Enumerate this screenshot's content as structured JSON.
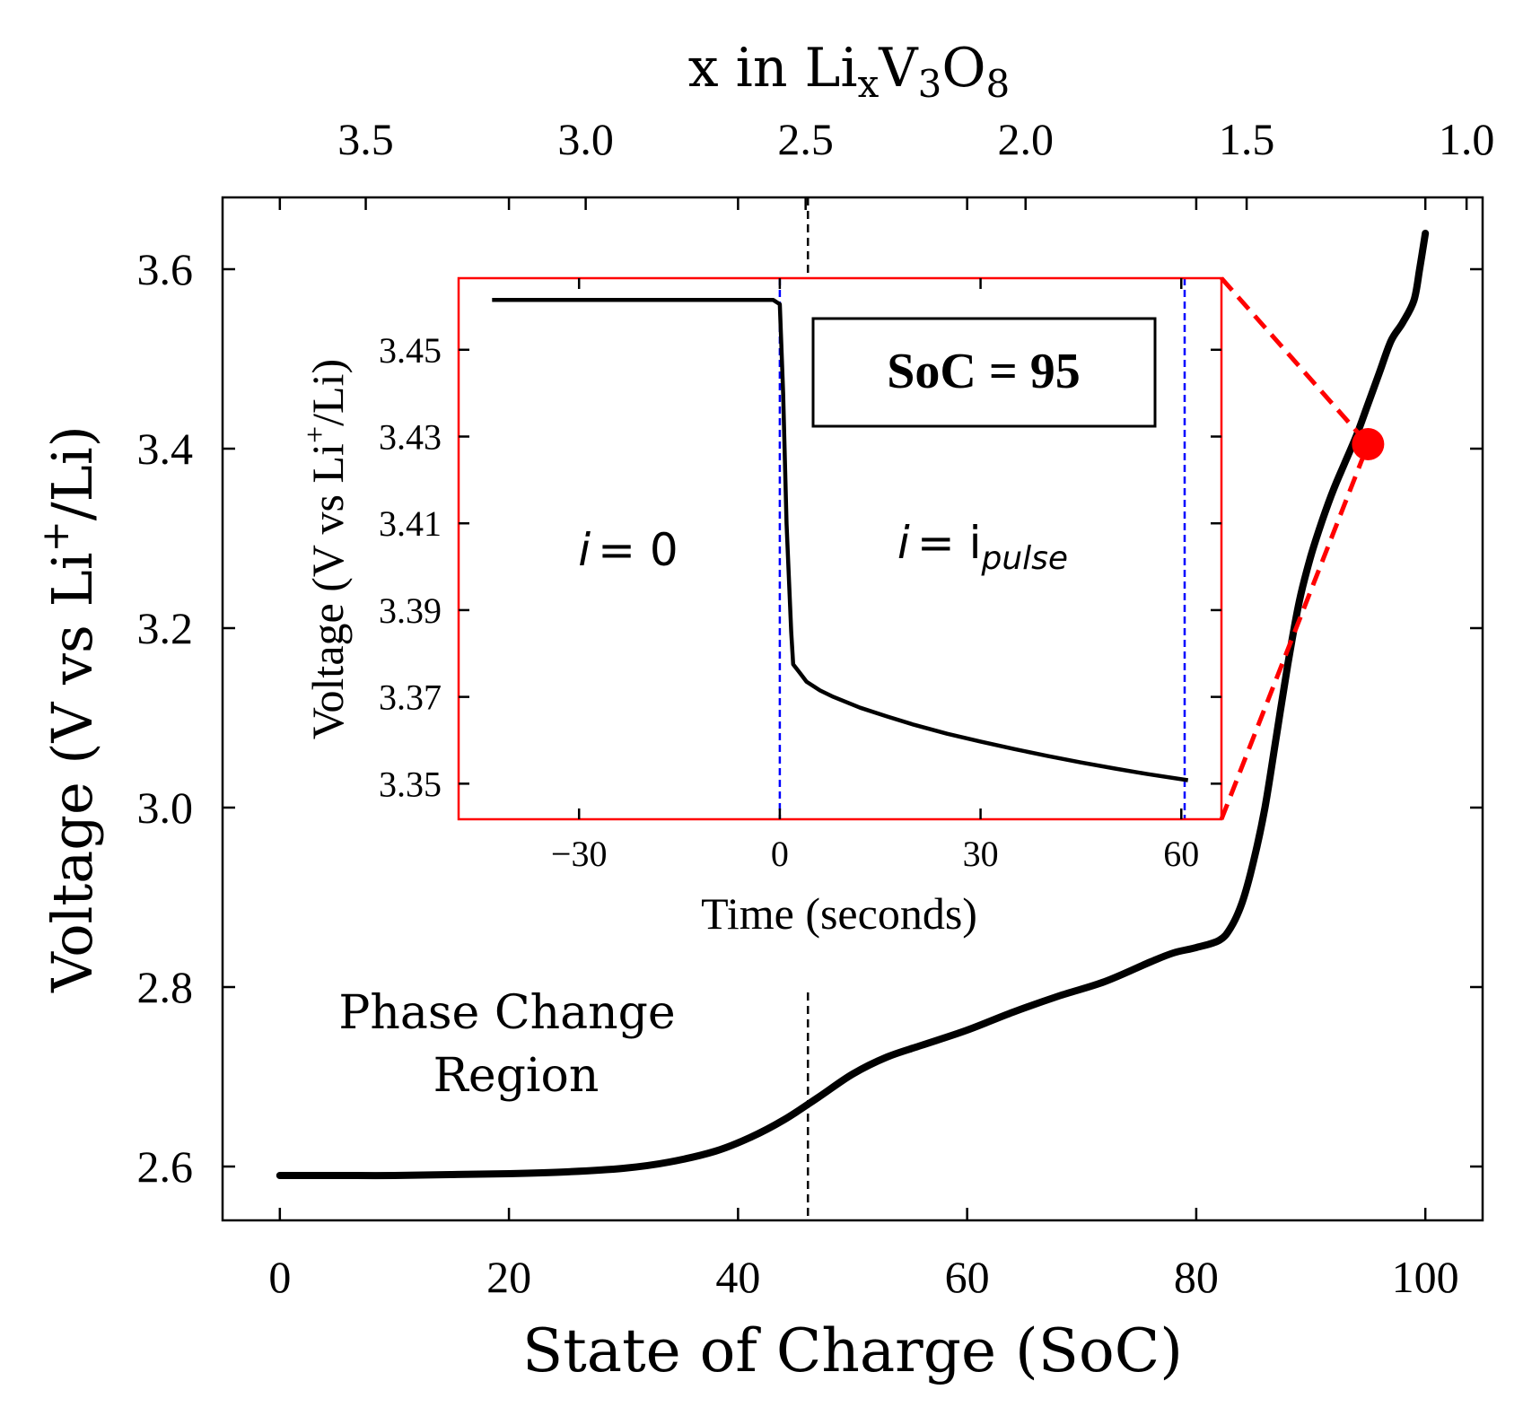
{
  "chart_data": [
    {
      "type": "line",
      "title": "",
      "xlabel": "State of Charge (SoC)",
      "ylabel": "Voltage (V vs Li⁺/Li)",
      "xlim": [
        -5,
        105
      ],
      "ylim": [
        2.54,
        3.68
      ],
      "xticks": [
        0,
        20,
        40,
        60,
        80,
        100
      ],
      "xtick_labels": [
        "0",
        "20",
        "40",
        "60",
        "80",
        "100"
      ],
      "yticks": [
        2.6,
        2.8,
        3.0,
        3.2,
        3.4,
        3.6
      ],
      "ytick_labels": [
        "2.6",
        "2.8",
        "3.0",
        "3.2",
        "3.4",
        "3.6"
      ],
      "top_axis": {
        "label_main": "x in Li",
        "label_sub1": "x",
        "label_mid": "V",
        "label_sub2": "3",
        "label_end": "O",
        "label_sub3": "8",
        "ticks_soc": [
          7.5,
          26.7,
          45.9,
          65.1,
          84.4,
          103.6
        ],
        "tick_labels": [
          "3.5",
          "3.0",
          "2.5",
          "2.0",
          "1.5",
          "1.0"
        ]
      },
      "series": [
        {
          "x": [
            0,
            5,
            10,
            15,
            20,
            25,
            30,
            34,
            38,
            41,
            44,
            47,
            50,
            53,
            56,
            60,
            64,
            68,
            72,
            76,
            78,
            80,
            82,
            83,
            84,
            85,
            86,
            87,
            88,
            89,
            90,
            91,
            92,
            93,
            94,
            95,
            96,
            97,
            98,
            99,
            99.5,
            100
          ],
          "y": [
            2.59,
            2.59,
            2.59,
            2.591,
            2.592,
            2.594,
            2.598,
            2.605,
            2.617,
            2.632,
            2.652,
            2.677,
            2.703,
            2.722,
            2.735,
            2.752,
            2.772,
            2.79,
            2.806,
            2.828,
            2.838,
            2.844,
            2.852,
            2.866,
            2.894,
            2.94,
            3.0,
            3.08,
            3.16,
            3.23,
            3.28,
            3.32,
            3.355,
            3.385,
            3.415,
            3.45,
            3.485,
            3.52,
            3.54,
            3.565,
            3.6,
            3.64
          ]
        }
      ],
      "vlines": [
        {
          "x": 46.1,
          "color": "#000000",
          "style": "dashed"
        }
      ],
      "annotations": [
        {
          "line1": "Phase Change",
          "line2": "Region"
        }
      ],
      "marker": {
        "x": 95,
        "y": 3.405,
        "color": "#ff0000"
      },
      "grid": false
    },
    {
      "type": "line",
      "title": "",
      "xlabel": "Time (seconds)",
      "ylabel": "Voltage (V vs Li⁺/Li)",
      "xlim": [
        -48,
        66
      ],
      "ylim": [
        3.3418,
        3.4665
      ],
      "xticks": [
        -30,
        0,
        30,
        60
      ],
      "xtick_labels": [
        "−30",
        "0",
        "30",
        "60"
      ],
      "yticks": [
        3.35,
        3.37,
        3.39,
        3.41,
        3.43,
        3.45
      ],
      "ytick_labels": [
        "3.35",
        "3.37",
        "3.39",
        "3.41",
        "3.43",
        "3.45"
      ],
      "series": [
        {
          "x": [
            -43,
            -1,
            0,
            0.5,
            1,
            1.7,
            2,
            3,
            4,
            6,
            8,
            12,
            16,
            20,
            25,
            30,
            35,
            40,
            45,
            50,
            55,
            61
          ],
          "y": [
            3.4615,
            3.4615,
            3.4605,
            3.44,
            3.41,
            3.385,
            3.3775,
            3.3755,
            3.3735,
            3.3715,
            3.37,
            3.3675,
            3.3655,
            3.3636,
            3.3615,
            3.3597,
            3.358,
            3.3564,
            3.3549,
            3.3535,
            3.3522,
            3.3508
          ]
        }
      ],
      "vlines": [
        {
          "x": 0,
          "color": "#0000ff",
          "style": "dashed"
        },
        {
          "x": 60.5,
          "color": "#0000ff",
          "style": "dashed"
        }
      ],
      "box_label": "SoC = 95",
      "region_labels": {
        "rest": {
          "i": "i",
          "eq": "= 0"
        },
        "pulse": {
          "i": "i",
          "eq": "= i",
          "sub": "pulse"
        }
      },
      "border_color": "#ff0000",
      "grid": false
    }
  ]
}
